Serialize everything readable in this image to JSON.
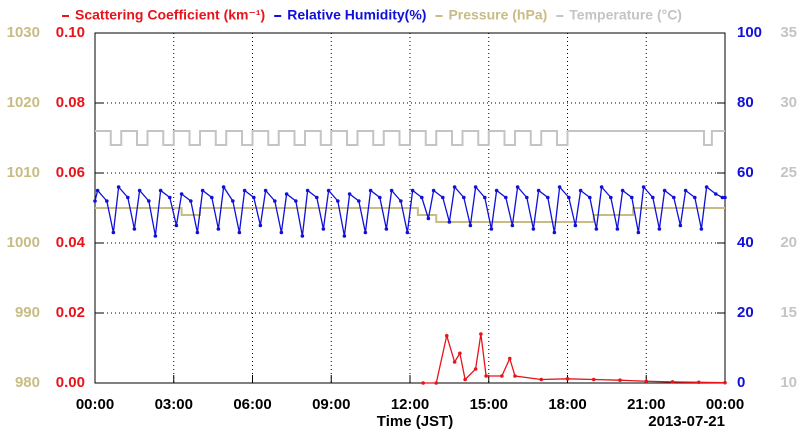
{
  "chart_data": {
    "type": "line",
    "xlabel": "Time (JST)",
    "annotation": "2013-07-21",
    "xlim": [
      0,
      24
    ],
    "xticks": [
      {
        "value": 0,
        "label": "00:00"
      },
      {
        "value": 3,
        "label": "03:00"
      },
      {
        "value": 6,
        "label": "06:00"
      },
      {
        "value": 9,
        "label": "09:00"
      },
      {
        "value": 12,
        "label": "12:00"
      },
      {
        "value": 15,
        "label": "15:00"
      },
      {
        "value": 18,
        "label": "18:00"
      },
      {
        "value": 21,
        "label": "21:00"
      },
      {
        "value": 24,
        "label": "00:00"
      }
    ],
    "ylim": [
      0,
      0.1
    ],
    "yticks": [
      {
        "value": 0,
        "label": "0.00"
      },
      0.02,
      0.04,
      0.06,
      0.08,
      {
        "value": 0.1,
        "label": "0.10"
      }
    ],
    "y2lim": [
      0,
      100
    ],
    "y2ticks": [
      0,
      20,
      40,
      60,
      80,
      100
    ],
    "y3lim": [
      980,
      1030
    ],
    "y3ticks": [
      980,
      990,
      1000,
      1010,
      1020,
      1030
    ],
    "y4lim": [
      10,
      35
    ],
    "y4ticks": [
      10,
      15,
      20,
      25,
      30,
      35
    ],
    "grid": true,
    "series": [
      {
        "name": "Scattering Coefficient (km⁻¹)",
        "color": "#e8141b",
        "axis": "y",
        "marker": true,
        "x": [
          12.5,
          13.0,
          13.4,
          13.7,
          13.9,
          14.1,
          14.5,
          14.7,
          14.9,
          15.5,
          15.8,
          16.0,
          17,
          18,
          19,
          20,
          21,
          22,
          23,
          24
        ],
        "values": [
          0,
          0,
          0.0135,
          0.006,
          0.0085,
          0.001,
          0.004,
          0.014,
          0.002,
          0.002,
          0.007,
          0.002,
          0.001,
          0.0012,
          0.001,
          0.0008,
          0.0005,
          0.0003,
          0.0002,
          0.0001
        ]
      },
      {
        "name": "Relative Humidity(%)",
        "color": "#1010d8",
        "axis": "y2",
        "marker": true,
        "x": [
          0,
          0.1,
          0.45,
          0.7,
          0.9,
          1.25,
          1.5,
          1.7,
          2.05,
          2.3,
          2.5,
          2.85,
          3.1,
          3.3,
          3.65,
          3.9,
          4.1,
          4.45,
          4.7,
          4.9,
          5.25,
          5.5,
          5.7,
          6.05,
          6.3,
          6.5,
          6.85,
          7.1,
          7.3,
          7.65,
          7.9,
          8.1,
          8.45,
          8.7,
          8.9,
          9.25,
          9.5,
          9.7,
          10.05,
          10.3,
          10.5,
          10.85,
          11.1,
          11.3,
          11.65,
          11.9,
          12.1,
          12.45,
          12.7,
          12.9,
          13.25,
          13.5,
          13.7,
          14.05,
          14.3,
          14.5,
          14.85,
          15.1,
          15.3,
          15.65,
          15.9,
          16.1,
          16.45,
          16.7,
          16.9,
          17.25,
          17.5,
          17.7,
          18.05,
          18.3,
          18.5,
          18.85,
          19.1,
          19.3,
          19.65,
          19.9,
          20.1,
          20.45,
          20.7,
          20.9,
          21.25,
          21.5,
          21.7,
          22.05,
          22.3,
          22.5,
          22.85,
          23.1,
          23.3,
          23.65,
          23.9,
          24
        ],
        "values": [
          52,
          55,
          52,
          43,
          56,
          53,
          44,
          55,
          52,
          42,
          55,
          53,
          45,
          54,
          52,
          43,
          55,
          53,
          44,
          56,
          52,
          43,
          55,
          53,
          45,
          55,
          52,
          43,
          54,
          52,
          42,
          55,
          53,
          44,
          55,
          52,
          42,
          54,
          52,
          43,
          55,
          53,
          44,
          55,
          52,
          43,
          55,
          53,
          47,
          55,
          53,
          46,
          56,
          53,
          45,
          56,
          53,
          44,
          55,
          53,
          45,
          56,
          53,
          44,
          55,
          53,
          43,
          56,
          53,
          45,
          55,
          53,
          44,
          56,
          53,
          44,
          55,
          53,
          43,
          56,
          53,
          44,
          55,
          53,
          45,
          55,
          53,
          44,
          56,
          54,
          53,
          53
        ]
      },
      {
        "name": "Pressure (hPa)",
        "color": "#c8bc84",
        "axis": "y3",
        "step": true,
        "x": [
          0,
          3.3,
          4.0,
          12.3,
          13.0,
          19.0,
          20.5,
          24
        ],
        "values": [
          1005,
          1004,
          1005,
          1004,
          1003,
          1004,
          1005,
          1005
        ]
      },
      {
        "name": "Temperature (°C)",
        "color": "#c4c4c4",
        "axis": "y4",
        "step": true,
        "x": [
          0,
          0.6,
          1,
          1.6,
          2,
          2.6,
          3,
          3.6,
          4,
          4.6,
          5,
          5.6,
          6,
          6.6,
          7,
          7.6,
          8,
          8.6,
          9,
          9.6,
          10,
          10.6,
          11,
          11.6,
          12,
          12.6,
          13,
          13.6,
          14,
          14.6,
          15,
          15.6,
          16,
          16.6,
          17,
          17.6,
          18,
          23.2,
          23.5,
          24
        ],
        "values": [
          28,
          27,
          28,
          27,
          28,
          27,
          28,
          27,
          28,
          27,
          28,
          27,
          28,
          27,
          28,
          27,
          28,
          27,
          28,
          27,
          28,
          27,
          28,
          27,
          28,
          27,
          28,
          27,
          28,
          27,
          28,
          27,
          28,
          27,
          28,
          27,
          28,
          27,
          28,
          28
        ]
      }
    ]
  }
}
